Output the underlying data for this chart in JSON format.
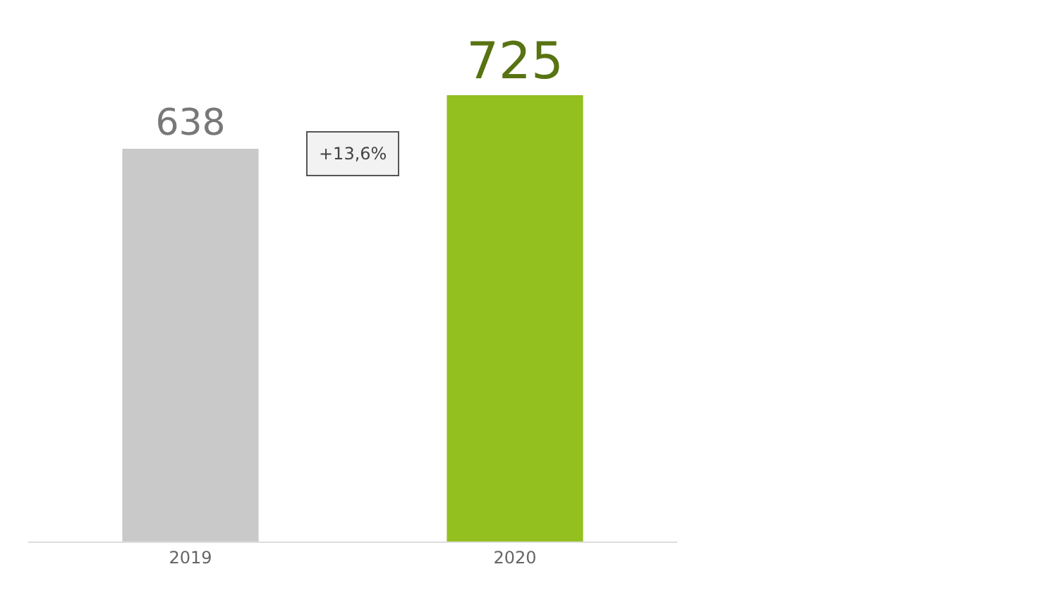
{
  "chart_data": {
    "type": "bar",
    "categories": [
      "2019",
      "2020"
    ],
    "values": [
      638,
      725
    ],
    "colors": [
      "#c8c9c8",
      "#93c01f"
    ],
    "data_labels": true,
    "annotations": [
      "+13,6%"
    ]
  }
}
